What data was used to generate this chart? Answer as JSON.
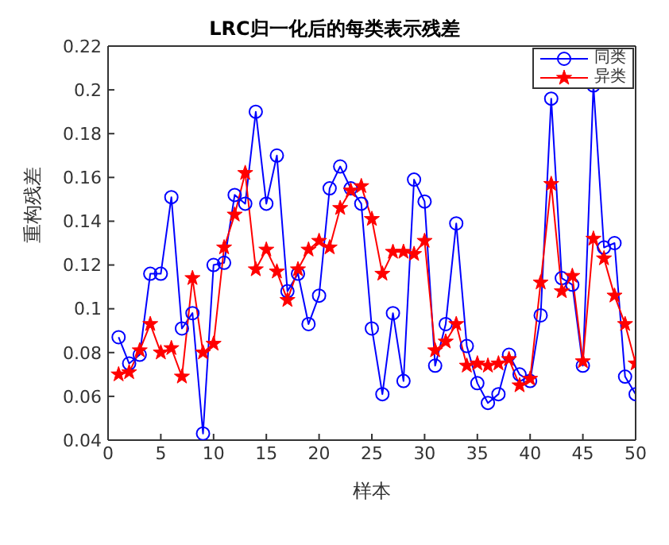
{
  "chart_data": {
    "type": "line",
    "title": "LRC归一化后的每类表示残差",
    "xlabel": "样本",
    "ylabel": "重构残差",
    "x": [
      1,
      2,
      3,
      4,
      5,
      6,
      7,
      8,
      9,
      10,
      11,
      12,
      13,
      14,
      15,
      16,
      17,
      18,
      19,
      20,
      21,
      22,
      23,
      24,
      25,
      26,
      27,
      28,
      29,
      30,
      31,
      32,
      33,
      34,
      35,
      36,
      37,
      38,
      39,
      40,
      41,
      42,
      43,
      44,
      45,
      46,
      47,
      48,
      49,
      50
    ],
    "series": [
      {
        "name": "同类",
        "color": "#0000ff",
        "marker": "circle",
        "values": [
          0.087,
          0.075,
          0.079,
          0.116,
          0.116,
          0.151,
          0.091,
          0.098,
          0.043,
          0.12,
          0.121,
          0.152,
          0.148,
          0.19,
          0.148,
          0.17,
          0.108,
          0.116,
          0.093,
          0.106,
          0.155,
          0.165,
          0.155,
          0.148,
          0.091,
          0.061,
          0.098,
          0.067,
          0.159,
          0.149,
          0.074,
          0.093,
          0.139,
          0.083,
          0.066,
          0.057,
          0.061,
          0.079,
          0.07,
          0.067,
          0.097,
          0.196,
          0.114,
          0.111,
          0.074,
          0.202,
          0.128,
          0.13,
          0.069,
          0.061
        ]
      },
      {
        "name": "异类",
        "color": "#ff0000",
        "marker": "star",
        "values": [
          0.07,
          0.071,
          0.081,
          0.093,
          0.08,
          0.082,
          0.069,
          0.114,
          0.08,
          0.084,
          0.128,
          0.143,
          0.162,
          0.118,
          0.127,
          0.117,
          0.104,
          0.118,
          0.127,
          0.131,
          0.128,
          0.146,
          0.154,
          0.156,
          0.141,
          0.116,
          0.126,
          0.126,
          0.125,
          0.131,
          0.081,
          0.085,
          0.093,
          0.074,
          0.075,
          0.074,
          0.075,
          0.077,
          0.065,
          0.068,
          0.112,
          0.157,
          0.108,
          0.115,
          0.076,
          0.132,
          0.123,
          0.106,
          0.093,
          0.075
        ]
      }
    ],
    "xlim": [
      0,
      50
    ],
    "xticks": [
      0,
      5,
      10,
      15,
      20,
      25,
      30,
      35,
      40,
      45,
      50
    ],
    "ylim": [
      0.04,
      0.22
    ],
    "yticks": [
      0.04,
      0.06,
      0.08,
      0.1,
      0.12,
      0.14,
      0.16,
      0.18,
      0.2,
      0.22
    ],
    "grid": false,
    "legend": "top right",
    "line_style": "solid"
  }
}
